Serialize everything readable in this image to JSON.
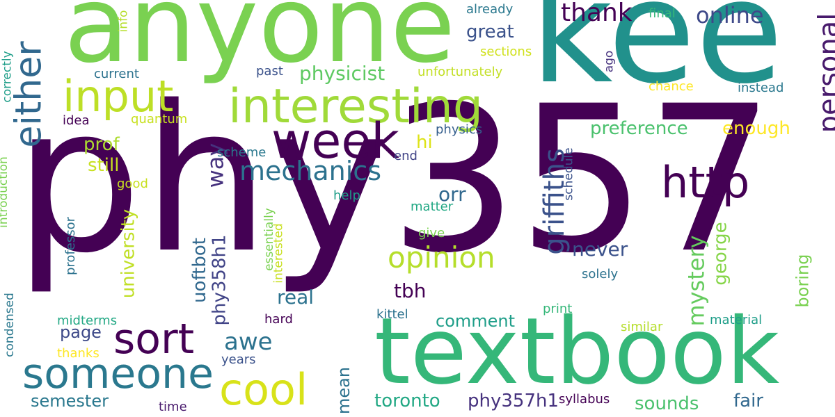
{
  "words": [
    {
      "text": "phy357",
      "color": "#440154"
    },
    {
      "text": "anyone",
      "color": "#7ad151"
    },
    {
      "text": "kee",
      "color": "#21918c"
    },
    {
      "text": "textbook",
      "color": "#35b779"
    },
    {
      "text": "interesting",
      "color": "#a0da39"
    },
    {
      "text": "either",
      "color": "#31688e"
    },
    {
      "text": "input",
      "color": "#bddf26"
    },
    {
      "text": "week",
      "color": "#440154"
    },
    {
      "text": "sort",
      "color": "#440154"
    },
    {
      "text": "someone",
      "color": "#2a788e"
    },
    {
      "text": "http",
      "color": "#440154"
    },
    {
      "text": "cool",
      "color": "#d8e219"
    },
    {
      "text": "mechanics",
      "color": "#2c728e"
    },
    {
      "text": "opinion",
      "color": "#b5de2b"
    },
    {
      "text": "griffiths",
      "color": "#3b528b"
    },
    {
      "text": "thank",
      "color": "#440154"
    },
    {
      "text": "online",
      "color": "#3e4989"
    },
    {
      "text": "personal",
      "color": "#481a6c"
    },
    {
      "text": "preference",
      "color": "#4ac16d"
    },
    {
      "text": "enough",
      "color": "#fde725"
    },
    {
      "text": "great",
      "color": "#3b528b"
    },
    {
      "text": "physicist",
      "color": "#5ec962"
    },
    {
      "text": "prof",
      "color": "#addc30"
    },
    {
      "text": "still",
      "color": "#c8e020"
    },
    {
      "text": "way",
      "color": "#46327e"
    },
    {
      "text": "awe",
      "color": "#2c728e"
    },
    {
      "text": "uoftbot",
      "color": "#31688e"
    },
    {
      "text": "phy358h1",
      "color": "#414487"
    },
    {
      "text": "university",
      "color": "#c0df25"
    },
    {
      "text": "page",
      "color": "#3e4a89"
    },
    {
      "text": "semester",
      "color": "#2a788e"
    },
    {
      "text": "mean",
      "color": "#2c728e"
    },
    {
      "text": "toronto",
      "color": "#22a884"
    },
    {
      "text": "phy357h1",
      "color": "#46327e"
    },
    {
      "text": "sounds",
      "color": "#4ac16d"
    },
    {
      "text": "fair",
      "color": "#31688e"
    },
    {
      "text": "mystery",
      "color": "#65cb5e"
    },
    {
      "text": "george",
      "color": "#86d549"
    },
    {
      "text": "boring",
      "color": "#7ad151"
    },
    {
      "text": "never",
      "color": "#3b528b"
    },
    {
      "text": "real",
      "color": "#2c728e"
    },
    {
      "text": "tbh",
      "color": "#440154"
    },
    {
      "text": "comment",
      "color": "#1f9e89"
    },
    {
      "text": "orr",
      "color": "#31688e"
    },
    {
      "text": "hi",
      "color": "#dde318"
    },
    {
      "text": "physics",
      "color": "#355f8d"
    },
    {
      "text": "already",
      "color": "#2a788e"
    },
    {
      "text": "final",
      "color": "#35b779"
    },
    {
      "text": "sections",
      "color": "#d0e11c"
    },
    {
      "text": "unfortunately",
      "color": "#c2df23"
    },
    {
      "text": "past",
      "color": "#3b528b"
    },
    {
      "text": "current",
      "color": "#2c728e"
    },
    {
      "text": "quantum",
      "color": "#c8e020"
    },
    {
      "text": "idea",
      "color": "#440154"
    },
    {
      "text": "info",
      "color": "#b5de2b"
    },
    {
      "text": "correctly",
      "color": "#1f9e89"
    },
    {
      "text": "introduction",
      "color": "#7ad151"
    },
    {
      "text": "condensed",
      "color": "#2a788e"
    },
    {
      "text": "professor",
      "color": "#2c728e"
    },
    {
      "text": "good",
      "color": "#c8e020"
    },
    {
      "text": "midterms",
      "color": "#22a884"
    },
    {
      "text": "thanks",
      "color": "#fde725"
    },
    {
      "text": "years",
      "color": "#3b528b"
    },
    {
      "text": "hard",
      "color": "#440154"
    },
    {
      "text": "kittel",
      "color": "#2c728e"
    },
    {
      "text": "print",
      "color": "#35b779"
    },
    {
      "text": "time",
      "color": "#481a6c"
    },
    {
      "text": "syllabus",
      "color": "#440154"
    },
    {
      "text": "scheme",
      "color": "#2a788e"
    },
    {
      "text": "end",
      "color": "#414487"
    },
    {
      "text": "help",
      "color": "#1f9e89"
    },
    {
      "text": "matter",
      "color": "#22a884"
    },
    {
      "text": "give",
      "color": "#7ad151"
    },
    {
      "text": "essentially",
      "color": "#7ad151"
    },
    {
      "text": "interested",
      "color": "#c8e020"
    },
    {
      "text": "schedule",
      "color": "#3b528b"
    },
    {
      "text": "solely",
      "color": "#2c728e"
    },
    {
      "text": "similar",
      "color": "#b5de2b"
    },
    {
      "text": "material",
      "color": "#1f9e89"
    },
    {
      "text": "chance",
      "color": "#fde725"
    },
    {
      "text": "instead",
      "color": "#2a788e"
    },
    {
      "text": "ago",
      "color": "#46327e"
    }
  ]
}
